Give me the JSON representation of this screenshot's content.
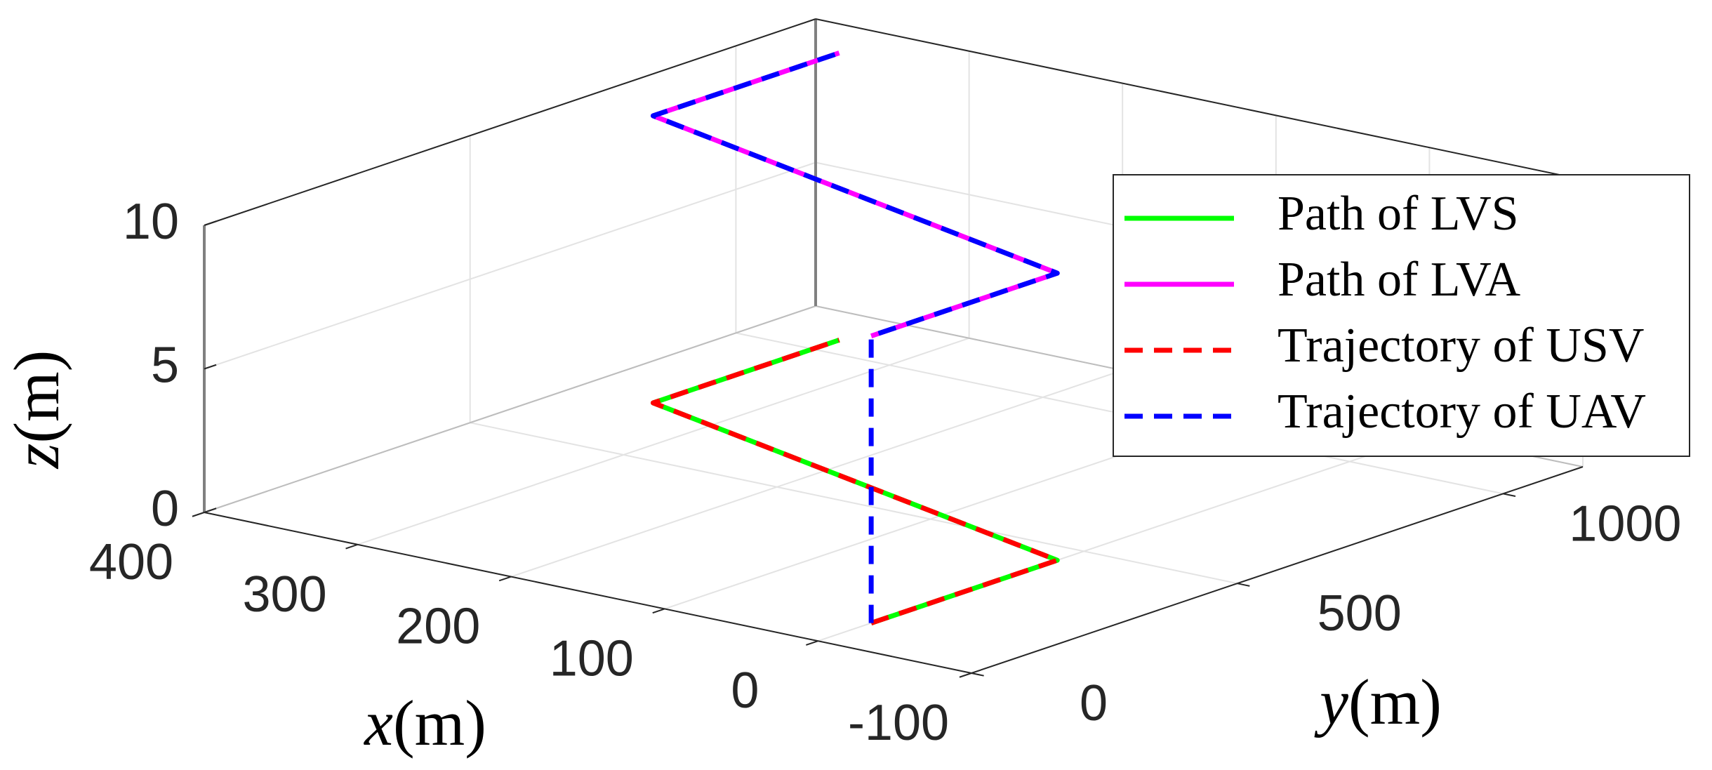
{
  "chart_data": {
    "type": "line3d",
    "series": [
      {
        "name": "Path of LVS",
        "color": "#00ff00",
        "style": "solid",
        "x": [
          0,
          0,
          350,
          350
        ],
        "y": [
          100,
          450,
          700,
          1050
        ],
        "z": [
          0,
          0,
          0,
          0
        ]
      },
      {
        "name": "Path of LVA",
        "color": "#ff00ff",
        "style": "solid",
        "x": [
          0,
          0,
          350,
          350
        ],
        "y": [
          100,
          450,
          700,
          1050
        ],
        "z": [
          10,
          10,
          10,
          10
        ]
      },
      {
        "name": "Trajectory of USV",
        "color": "#ff0000",
        "style": "dashed",
        "x": [
          0,
          0,
          350,
          350
        ],
        "y": [
          100,
          450,
          700,
          1050
        ],
        "z": [
          0,
          0,
          0,
          0
        ]
      },
      {
        "name": "Trajectory of UAV",
        "color": "#0000ff",
        "style": "dashed",
        "x": [
          0,
          0,
          0,
          350,
          350
        ],
        "y": [
          100,
          100,
          450,
          700,
          1050
        ],
        "z": [
          0,
          10,
          10,
          10,
          10
        ]
      }
    ],
    "xlabel": [
      "x",
      "(m)"
    ],
    "ylabel": [
      "y",
      "(m)"
    ],
    "zlabel": [
      "z",
      "(m)"
    ],
    "xlim": [
      -100,
      400
    ],
    "ylim": [
      0,
      1150
    ],
    "zlim": [
      0,
      10
    ],
    "xticks": [
      -100,
      0,
      100,
      200,
      300,
      400
    ],
    "yticks": [
      0,
      500,
      1000
    ],
    "zticks": [
      0,
      5,
      10
    ],
    "grid": true,
    "legend": "northeast"
  }
}
